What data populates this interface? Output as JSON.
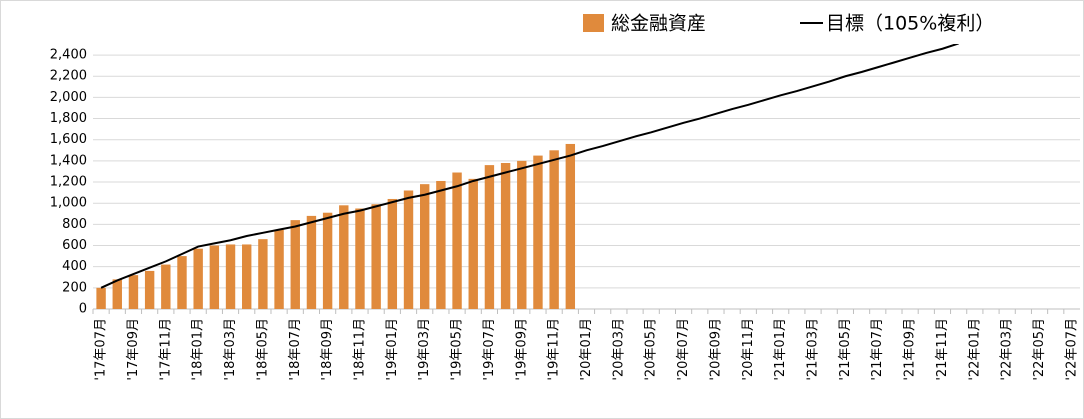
{
  "chart_data": {
    "type": "bar-line",
    "categories": [
      "'17年07月",
      null,
      "'17年09月",
      null,
      "'17年11月",
      null,
      "'18年01月",
      null,
      "'18年03月",
      null,
      "'18年05月",
      null,
      "'18年07月",
      null,
      "'18年09月",
      null,
      "'18年11月",
      null,
      "'19年01月",
      null,
      "'19年03月",
      null,
      "'19年05月",
      null,
      "'19年07月",
      null,
      "'19年09月",
      null,
      "'19年11月",
      null,
      "'20年01月",
      null,
      "'20年03月",
      null,
      "'20年05月",
      null,
      "'20年07月",
      null,
      "'20年09月",
      null,
      "'20年11月",
      null,
      "'21年01月",
      null,
      "'21年03月",
      null,
      "'21年05月",
      null,
      "'21年07月",
      null,
      "'21年09月",
      null,
      "'21年11月",
      null,
      "'22年01月",
      null,
      "'22年03月",
      null,
      "'22年05月",
      null,
      "'22年07月"
    ],
    "series": [
      {
        "name": "総金融資産",
        "kind": "bar",
        "color": "#e08a3c",
        "values": [
          200,
          280,
          320,
          360,
          420,
          500,
          570,
          600,
          610,
          610,
          660,
          750,
          840,
          880,
          910,
          980,
          950,
          990,
          1040,
          1120,
          1180,
          1210,
          1290,
          1230,
          1360,
          1380,
          1400,
          1450,
          1500,
          1560,
          null,
          null,
          null,
          null,
          null,
          null,
          null,
          null,
          null,
          null,
          null,
          null,
          null,
          null,
          null,
          null,
          null,
          null,
          null,
          null,
          null,
          null,
          null,
          null,
          null,
          null,
          null,
          null,
          null,
          null,
          null
        ]
      },
      {
        "name": "目標（105%複利）",
        "kind": "line",
        "color": "#000000",
        "values": [
          200,
          270,
          330,
          390,
          450,
          520,
          590,
          620,
          650,
          690,
          720,
          750,
          780,
          820,
          860,
          900,
          930,
          970,
          1010,
          1050,
          1080,
          1120,
          1160,
          1210,
          1250,
          1290,
          1330,
          1370,
          1410,
          1450,
          1500,
          1540,
          1585,
          1630,
          1670,
          1715,
          1760,
          1800,
          1845,
          1890,
          1930,
          1975,
          2020,
          2060,
          2105,
          2150,
          2200,
          2240,
          2285,
          2330,
          2375,
          2420,
          2460,
          2510,
          null,
          null,
          null,
          null,
          null,
          null,
          null
        ]
      }
    ],
    "ylim": [
      0,
      2500
    ],
    "yticks": [
      0,
      200,
      400,
      600,
      800,
      {
        "value": 1000,
        "label": "1,000"
      },
      {
        "value": 1200,
        "label": "1,200"
      },
      {
        "value": 1400,
        "label": "1,400"
      },
      {
        "value": 1600,
        "label": "1,600"
      },
      {
        "value": 1800,
        "label": "1,800"
      },
      {
        "value": 2000,
        "label": "2,000"
      },
      {
        "value": 2200,
        "label": "2,200"
      },
      {
        "value": 2400,
        "label": "2,400"
      }
    ],
    "grid": true
  }
}
